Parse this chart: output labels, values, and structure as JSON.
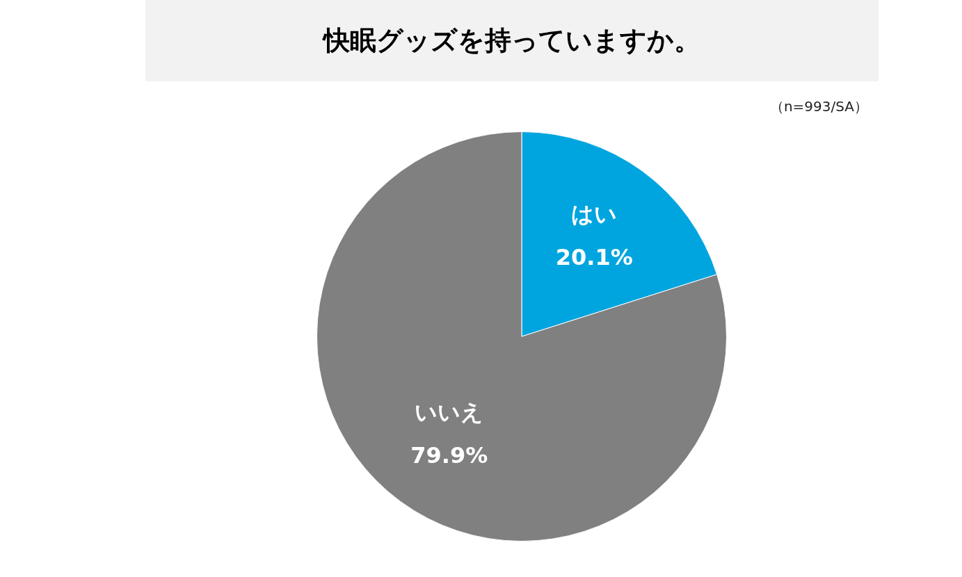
{
  "chart_data": {
    "type": "pie",
    "title": "快眠グッズを持っていますか。",
    "annotations": [
      "（n=993/SA）"
    ],
    "categories": [
      "はい",
      "いいえ"
    ],
    "values": [
      20.1,
      79.9
    ],
    "value_labels": [
      "20.1%",
      "79.9%"
    ],
    "colors": [
      "#00a5df",
      "#808080"
    ],
    "legend": false
  }
}
